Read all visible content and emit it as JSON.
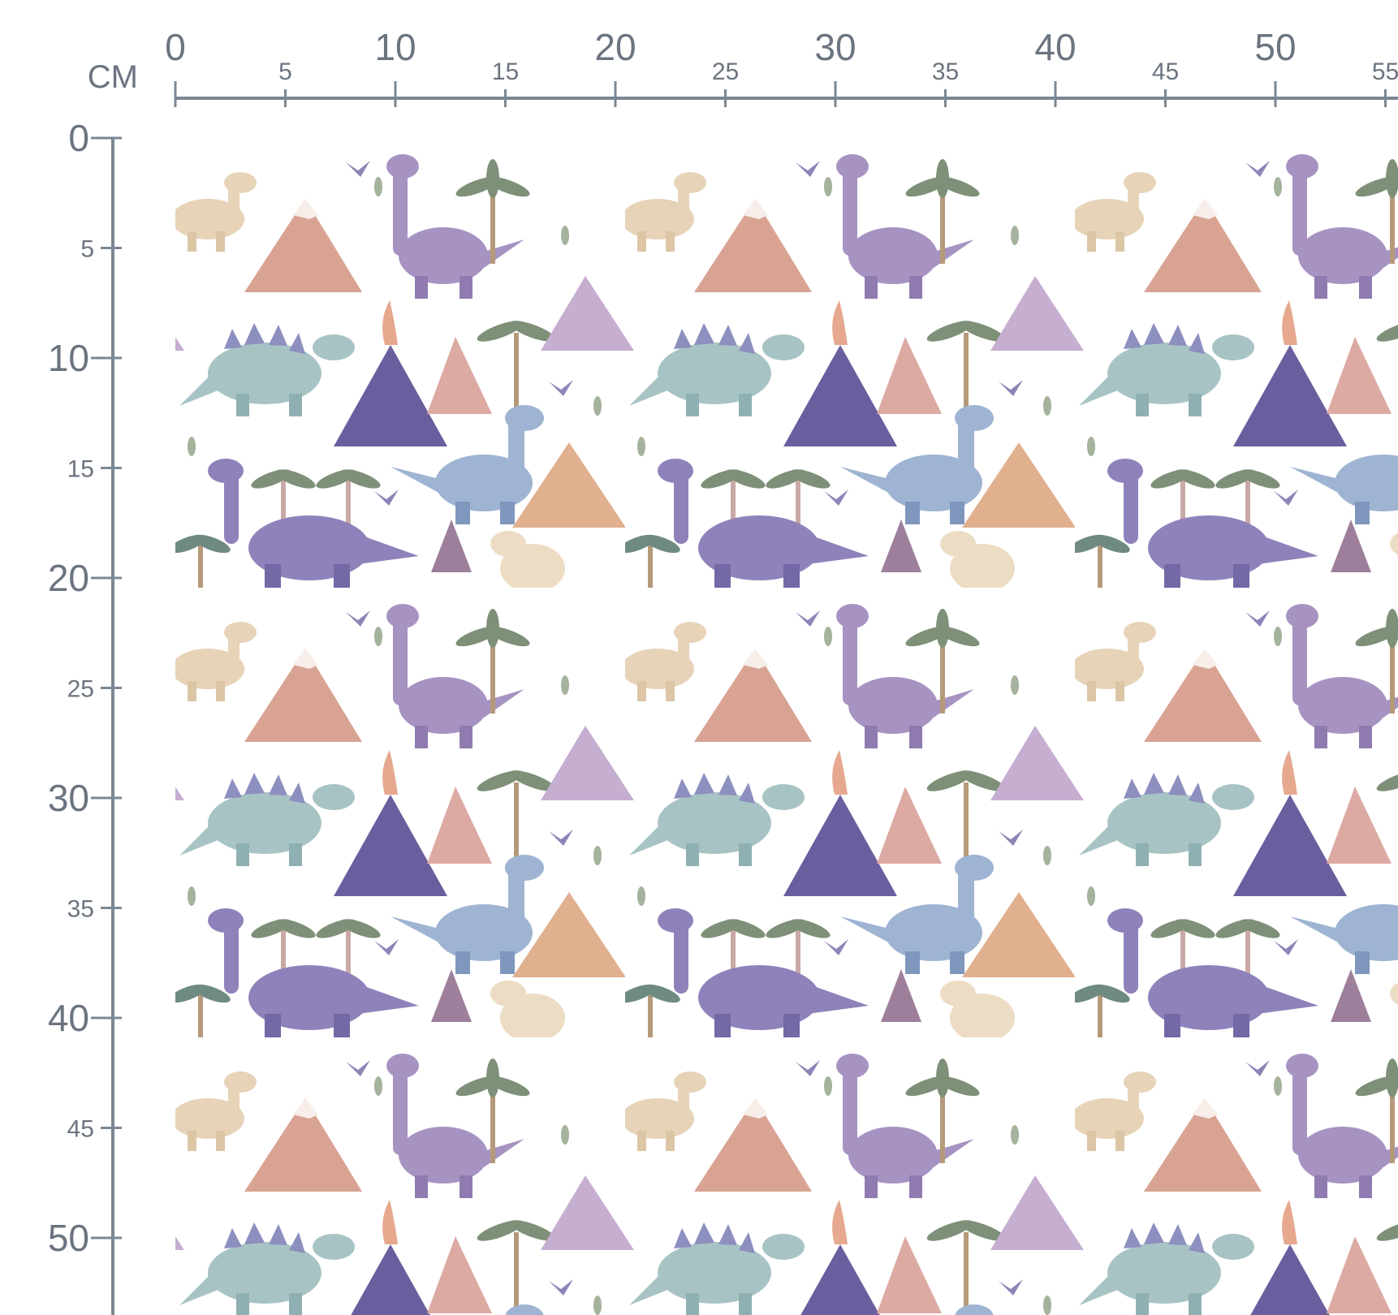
{
  "ruler": {
    "unit": "CM",
    "x_ticks": [
      0,
      5,
      10,
      15,
      20,
      25,
      30,
      35,
      40,
      45,
      50,
      55
    ],
    "y_ticks": [
      0,
      5,
      10,
      15,
      20,
      25,
      30,
      35,
      40,
      45,
      50
    ]
  }
}
